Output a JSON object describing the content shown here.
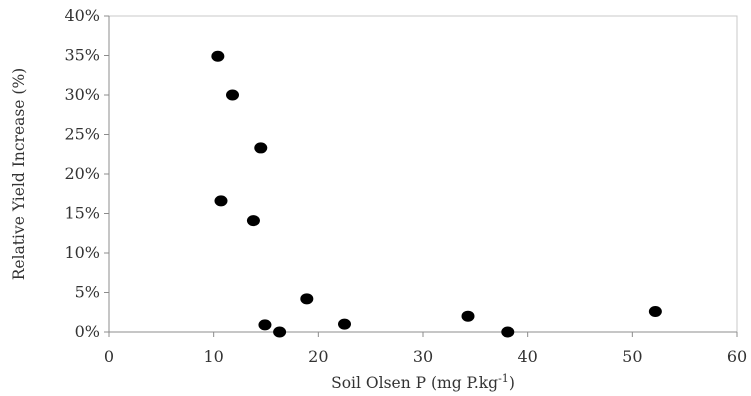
{
  "chart_data": {
    "type": "scatter",
    "xlabel": "Soil Olsen P (mg P.kg",
    "xlabel_superscript": "-1",
    "xlabel_suffix": ")",
    "ylabel": "Relative Yield Increase  (%)",
    "xlim": [
      0,
      60
    ],
    "ylim": [
      0,
      0.4
    ],
    "x_ticks": [
      0,
      10,
      20,
      30,
      40,
      50,
      60
    ],
    "x_tick_labels": [
      "0",
      "10",
      "20",
      "30",
      "40",
      "50",
      "60"
    ],
    "y_ticks": [
      0,
      0.05,
      0.1,
      0.15,
      0.2,
      0.25,
      0.3,
      0.35,
      0.4
    ],
    "y_tick_labels": [
      "0%",
      "5%",
      "10%",
      "15%",
      "20%",
      "25%",
      "30%",
      "35%",
      "40%"
    ],
    "grid": false,
    "legend": "none",
    "series": [
      {
        "points": [
          {
            "x": 10.4,
            "y": 0.349
          },
          {
            "x": 11.8,
            "y": 0.3
          },
          {
            "x": 14.5,
            "y": 0.233
          },
          {
            "x": 10.7,
            "y": 0.166
          },
          {
            "x": 13.8,
            "y": 0.141
          },
          {
            "x": 18.9,
            "y": 0.042
          },
          {
            "x": 14.9,
            "y": 0.009
          },
          {
            "x": 16.3,
            "y": 0.0
          },
          {
            "x": 22.5,
            "y": 0.01
          },
          {
            "x": 34.3,
            "y": 0.02
          },
          {
            "x": 38.1,
            "y": 0.0
          },
          {
            "x": 52.2,
            "y": 0.026
          }
        ],
        "color": "#000000"
      }
    ]
  }
}
